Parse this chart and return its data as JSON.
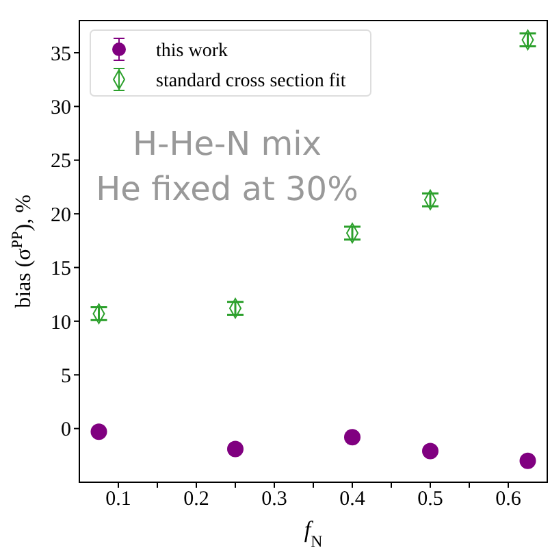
{
  "chart_data": {
    "type": "scatter",
    "xlabel": "f$_{N}$",
    "ylabel": "bias (σ$^{PP}$), %",
    "x": [
      0.075,
      0.25,
      0.4,
      0.5,
      0.625
    ],
    "series": [
      {
        "name": "this work",
        "color": "#800080",
        "marker": "circle",
        "values": [
          -0.3,
          -1.9,
          -0.8,
          -2.1,
          -3.0
        ]
      },
      {
        "name": "standard cross section fit",
        "color": "#2ca02c",
        "marker": "diamond",
        "values": [
          10.7,
          11.2,
          18.2,
          21.3,
          36.2
        ],
        "errors": [
          0.6,
          0.6,
          0.6,
          0.6,
          0.6
        ]
      }
    ],
    "xlim": [
      0.05,
      0.65
    ],
    "xticks": [
      0.1,
      {
        "value": 0.15,
        "label": null
      },
      0.2,
      {
        "value": 0.25,
        "label": null
      },
      0.3,
      {
        "value": 0.35,
        "label": null
      },
      0.4,
      {
        "value": 0.45,
        "label": null
      },
      0.5,
      {
        "value": 0.55,
        "label": null
      },
      0.6
    ],
    "ylim": [
      -5,
      38
    ],
    "yticks": [
      0,
      5,
      10,
      15,
      20,
      25,
      30,
      35
    ],
    "annotations": [
      "H-He-N mix",
      "He fixed at 30%"
    ],
    "legend": "top left",
    "grid": false
  }
}
